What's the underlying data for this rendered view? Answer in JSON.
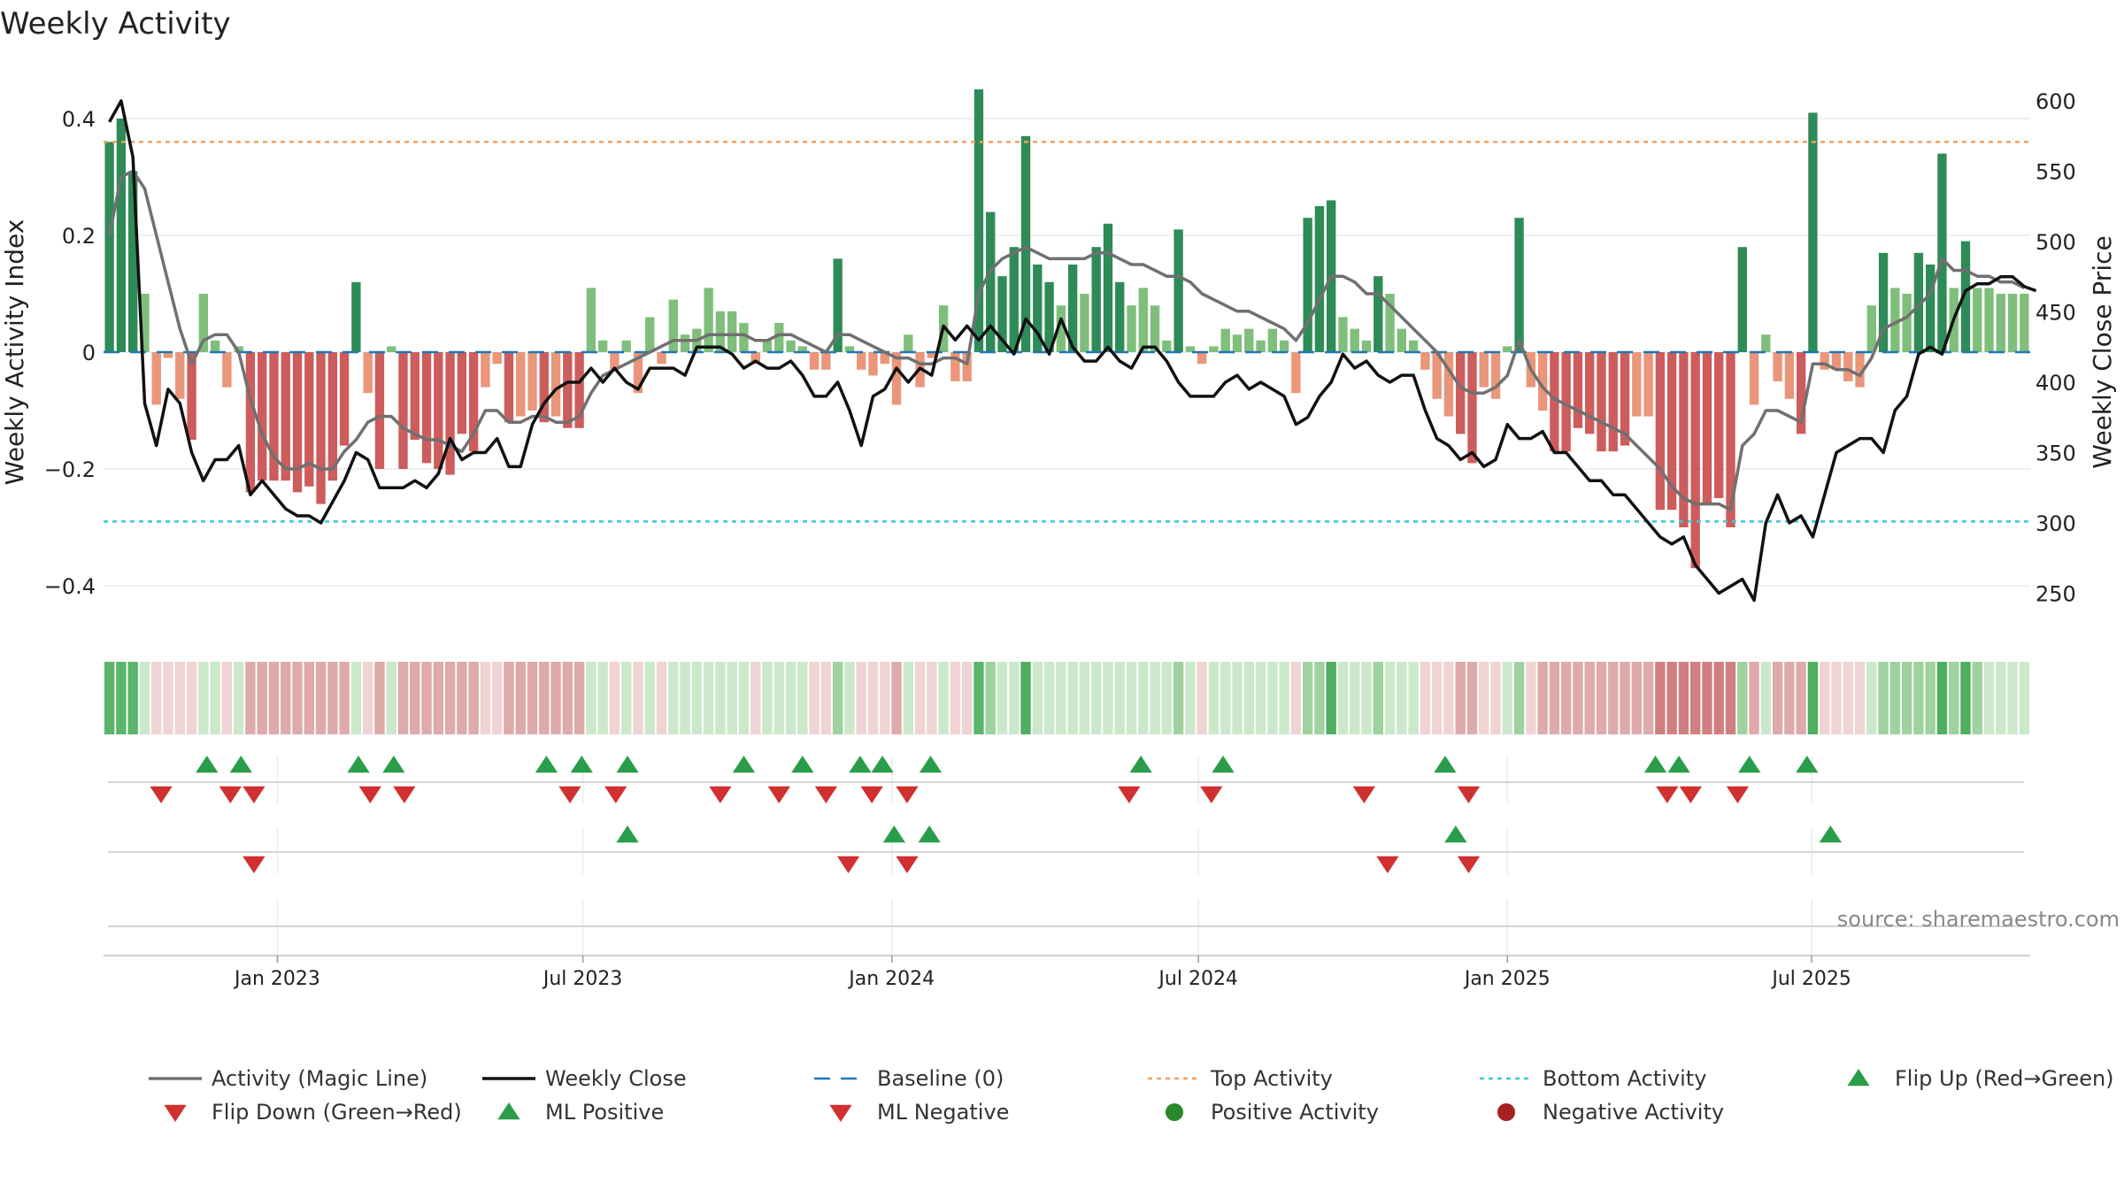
{
  "chart_data": {
    "type": "bar",
    "title": "Weekly Activity",
    "ylabel": "Weekly Activity Index",
    "y2label": "Weekly Close Price",
    "ylim": [
      -0.48,
      0.48
    ],
    "y2lim": [
      222,
      643
    ],
    "yticks": [
      0.4,
      0.2,
      0,
      -0.2,
      -0.4
    ],
    "ytick_labels": [
      "0.4",
      "0.2",
      "0",
      "−0.2",
      "−0.4"
    ],
    "y2ticks": [
      600,
      550,
      500,
      450,
      400,
      350,
      300,
      250
    ],
    "xticks": [
      {
        "label": "Jan 2023",
        "week": 14.3
      },
      {
        "label": "Jul 2023",
        "week": 40.3
      },
      {
        "label": "Jan 2024",
        "week": 66.6
      },
      {
        "label": "Jul 2024",
        "week": 92.7
      },
      {
        "label": "Jan 2025",
        "week": 119.0
      },
      {
        "label": "Jul 2025",
        "week": 144.9
      }
    ],
    "top_activity": 0.36,
    "bottom_activity": -0.29,
    "baseline": 0,
    "activity": [
      0.36,
      0.4,
      0.31,
      0.1,
      -0.09,
      -0.01,
      -0.08,
      -0.15,
      0.1,
      0.02,
      -0.06,
      0.01,
      -0.24,
      -0.22,
      -0.22,
      -0.22,
      -0.24,
      -0.23,
      -0.26,
      -0.22,
      -0.16,
      0.12,
      -0.07,
      -0.2,
      0.01,
      -0.2,
      -0.15,
      -0.19,
      -0.2,
      -0.21,
      -0.14,
      -0.17,
      -0.06,
      -0.02,
      -0.12,
      -0.11,
      -0.1,
      -0.12,
      -0.11,
      -0.13,
      -0.13,
      0.11,
      0.02,
      -0.03,
      0.02,
      -0.07,
      0.06,
      -0.02,
      0.09,
      0.03,
      0.04,
      0.11,
      0.07,
      0.07,
      0.05,
      -0.02,
      0.02,
      0.05,
      0.02,
      0.01,
      -0.03,
      -0.03,
      0.16,
      0.01,
      -0.03,
      -0.04,
      -0.02,
      -0.09,
      0.03,
      -0.06,
      -0.01,
      0.08,
      -0.05,
      -0.05,
      0.45,
      0.24,
      0.13,
      0.18,
      0.37,
      0.15,
      0.12,
      0.08,
      0.15,
      0.1,
      0.18,
      0.22,
      0.12,
      0.08,
      0.11,
      0.08,
      0.02,
      0.21,
      0.01,
      -0.02,
      0.01,
      0.04,
      0.03,
      0.04,
      0.02,
      0.04,
      0.02,
      -0.07,
      0.23,
      0.25,
      0.26,
      0.06,
      0.04,
      0.02,
      0.13,
      0.1,
      0.04,
      0.02,
      -0.03,
      -0.08,
      -0.11,
      -0.14,
      -0.19,
      -0.06,
      -0.08,
      0.01,
      0.23,
      -0.06,
      -0.1,
      -0.17,
      -0.17,
      -0.13,
      -0.14,
      -0.17,
      -0.17,
      -0.16,
      -0.11,
      -0.11,
      -0.27,
      -0.27,
      -0.3,
      -0.37,
      -0.26,
      -0.25,
      -0.3,
      0.18,
      -0.09,
      0.03,
      -0.05,
      -0.08,
      -0.14,
      0.41,
      -0.03,
      -0.03,
      -0.05,
      -0.06,
      0.08,
      0.17,
      0.11,
      0.1,
      0.17,
      0.15,
      0.34,
      0.11,
      0.19,
      0.11,
      0.11,
      0.1,
      0.1,
      0.1
    ],
    "activity_ml": [
      0.2,
      0.3,
      0.31,
      0.28,
      0.2,
      0.12,
      0.04,
      -0.02,
      0.02,
      0.03,
      0.03,
      0.0,
      -0.08,
      -0.14,
      -0.18,
      -0.2,
      -0.2,
      -0.19,
      -0.2,
      -0.2,
      -0.17,
      -0.15,
      -0.12,
      -0.11,
      -0.11,
      -0.13,
      -0.14,
      -0.15,
      -0.15,
      -0.16,
      -0.17,
      -0.14,
      -0.1,
      -0.1,
      -0.12,
      -0.12,
      -0.11,
      -0.11,
      -0.12,
      -0.12,
      -0.11,
      -0.07,
      -0.04,
      -0.03,
      -0.02,
      -0.01,
      0.0,
      0.01,
      0.02,
      0.02,
      0.02,
      0.03,
      0.03,
      0.03,
      0.03,
      0.02,
      0.02,
      0.03,
      0.03,
      0.02,
      0.01,
      0.0,
      0.03,
      0.03,
      0.02,
      0.01,
      0.0,
      -0.01,
      -0.01,
      -0.02,
      -0.02,
      -0.01,
      -0.01,
      -0.02,
      0.1,
      0.14,
      0.16,
      0.17,
      0.18,
      0.17,
      0.16,
      0.16,
      0.16,
      0.16,
      0.17,
      0.17,
      0.16,
      0.15,
      0.15,
      0.14,
      0.13,
      0.13,
      0.12,
      0.1,
      0.09,
      0.08,
      0.07,
      0.07,
      0.06,
      0.05,
      0.04,
      0.02,
      0.05,
      0.09,
      0.13,
      0.13,
      0.12,
      0.1,
      0.1,
      0.08,
      0.06,
      0.04,
      0.02,
      0.0,
      -0.03,
      -0.06,
      -0.07,
      -0.07,
      -0.06,
      -0.04,
      0.02,
      -0.03,
      -0.06,
      -0.08,
      -0.09,
      -0.1,
      -0.11,
      -0.12,
      -0.13,
      -0.14,
      -0.16,
      -0.18,
      -0.2,
      -0.23,
      -0.25,
      -0.26,
      -0.26,
      -0.26,
      -0.27,
      -0.16,
      -0.14,
      -0.1,
      -0.1,
      -0.11,
      -0.12,
      -0.02,
      -0.02,
      -0.03,
      -0.03,
      -0.04,
      -0.01,
      0.04,
      0.05,
      0.06,
      0.08,
      0.1,
      0.16,
      0.14,
      0.14,
      0.13,
      0.13,
      0.12,
      0.12,
      0.11
    ],
    "weekly_close": [
      585,
      600,
      560,
      385,
      355,
      395,
      385,
      350,
      330,
      345,
      345,
      355,
      320,
      330,
      320,
      310,
      305,
      305,
      300,
      315,
      330,
      350,
      345,
      325,
      325,
      325,
      330,
      325,
      335,
      360,
      345,
      350,
      350,
      360,
      340,
      340,
      370,
      385,
      395,
      400,
      400,
      410,
      400,
      410,
      400,
      395,
      410,
      410,
      410,
      405,
      425,
      425,
      425,
      420,
      410,
      415,
      410,
      410,
      415,
      405,
      390,
      390,
      400,
      380,
      355,
      390,
      395,
      410,
      400,
      410,
      405,
      440,
      430,
      440,
      430,
      440,
      430,
      420,
      445,
      435,
      420,
      445,
      425,
      415,
      415,
      425,
      415,
      410,
      425,
      425,
      415,
      400,
      390,
      390,
      390,
      400,
      405,
      395,
      400,
      395,
      390,
      370,
      375,
      390,
      400,
      420,
      410,
      415,
      405,
      400,
      405,
      405,
      380,
      360,
      355,
      345,
      350,
      340,
      345,
      370,
      360,
      360,
      365,
      350,
      350,
      340,
      330,
      330,
      320,
      320,
      310,
      300,
      290,
      285,
      290,
      270,
      260,
      250,
      255,
      260,
      245,
      300,
      320,
      300,
      305,
      290,
      320,
      350,
      355,
      360,
      360,
      350,
      380,
      390,
      420,
      425,
      420,
      445,
      465,
      470,
      470,
      475,
      475,
      468,
      465
    ],
    "heat_strip": [
      "ml+",
      "ml+",
      "ml+",
      "lg",
      "lr",
      "lr",
      "lr",
      "lr",
      "lg",
      "lg",
      "lr",
      "lg",
      "mr",
      "mr",
      "mr",
      "mr",
      "mr",
      "mr",
      "mr",
      "mr",
      "mr",
      "lg",
      "lr",
      "mr",
      "lg",
      "mr",
      "mr",
      "mr",
      "mr",
      "mr",
      "mr",
      "mr",
      "lr",
      "lr",
      "mr",
      "mr",
      "mr",
      "mr",
      "mr",
      "mr",
      "mr",
      "lg",
      "lg",
      "lr",
      "lg",
      "lr",
      "lg",
      "lr",
      "lg",
      "lg",
      "lg",
      "lg",
      "lg",
      "lg",
      "lg",
      "lr",
      "lg",
      "lg",
      "lg",
      "lg",
      "lr",
      "lr",
      "mg",
      "lg",
      "lr",
      "lr",
      "lr",
      "mr",
      "lg",
      "lr",
      "lr",
      "lg",
      "lr",
      "lr",
      "ml+",
      "mg",
      "lg",
      "lg",
      "dg",
      "lg",
      "lg",
      "lg",
      "lg",
      "lg",
      "lg",
      "lg",
      "lg",
      "lg",
      "lg",
      "lg",
      "lg",
      "mg",
      "lg",
      "lr",
      "lg",
      "lg",
      "lg",
      "lg",
      "lg",
      "lg",
      "lg",
      "lr",
      "mg",
      "mg",
      "dg",
      "lg",
      "lg",
      "lg",
      "mg",
      "lg",
      "lg",
      "lg",
      "lr",
      "lr",
      "lr",
      "mr",
      "mr",
      "lr",
      "lr",
      "lg",
      "mg",
      "lr",
      "mr",
      "mr",
      "mr",
      "mr",
      "mr",
      "mr",
      "mr",
      "mr",
      "mr",
      "mr",
      "dr",
      "dr",
      "dr",
      "dr",
      "dr",
      "dr",
      "dr",
      "mg",
      "mr",
      "lg",
      "mr",
      "mr",
      "mr",
      "dg",
      "lr",
      "lr",
      "lr",
      "lr",
      "lg",
      "mg",
      "mg",
      "mg",
      "mg",
      "mg",
      "dg",
      "mg",
      "dg",
      "mg",
      "lg",
      "lg",
      "lg",
      "lg"
    ],
    "flip_up": [
      8.3,
      11.2,
      21.2,
      24.2,
      37.2,
      40.2,
      44.1,
      54.0,
      59.0,
      63.9,
      65.8,
      69.9,
      87.8,
      94.8,
      113.7,
      131.6,
      133.6,
      139.6,
      144.5
    ],
    "flip_down": [
      4.4,
      10.3,
      12.3,
      22.2,
      25.1,
      39.2,
      43.1,
      52.0,
      57.0,
      61.0,
      64.9,
      67.9,
      86.8,
      93.8,
      106.8,
      115.7,
      132.6,
      134.6,
      138.6
    ],
    "ml_positive": [
      44.1,
      66.8,
      69.8,
      114.6,
      146.5
    ],
    "ml_negative": [
      12.3,
      62.9,
      67.9,
      108.8,
      115.7
    ],
    "legend": [
      {
        "key": "magic",
        "label": "Activity (Magic Line)"
      },
      {
        "key": "close",
        "label": "Weekly Close"
      },
      {
        "key": "baseline",
        "label": "Baseline (0)"
      },
      {
        "key": "top",
        "label": "Top Activity"
      },
      {
        "key": "bottom",
        "label": "Bottom Activity"
      },
      {
        "key": "flipup",
        "label": "Flip Up (Red→Green)"
      },
      {
        "key": "flipdown",
        "label": "Flip Down (Green→Red)"
      },
      {
        "key": "mlpos",
        "label": "ML Positive"
      },
      {
        "key": "mlneg",
        "label": "ML Negative"
      },
      {
        "key": "posact",
        "label": "Positive Activity"
      },
      {
        "key": "negact",
        "label": "Negative Activity"
      }
    ],
    "source": "source: sharemaestro.com",
    "colors": {
      "dark_green": "#2e8b57",
      "light_green": "#7fbf7b",
      "dark_red": "#cd5c5c",
      "light_red": "#e9967a",
      "magic_line": "#707070",
      "close_line": "#111111",
      "baseline": "#1f77b4",
      "top_line": "#f0a060",
      "bottom_line": "#3cc8d8",
      "flip_up": "#2a9d4a",
      "flip_down": "#d03030",
      "positive_dot": "#2a8a2a",
      "negative_dot": "#a82020"
    }
  }
}
